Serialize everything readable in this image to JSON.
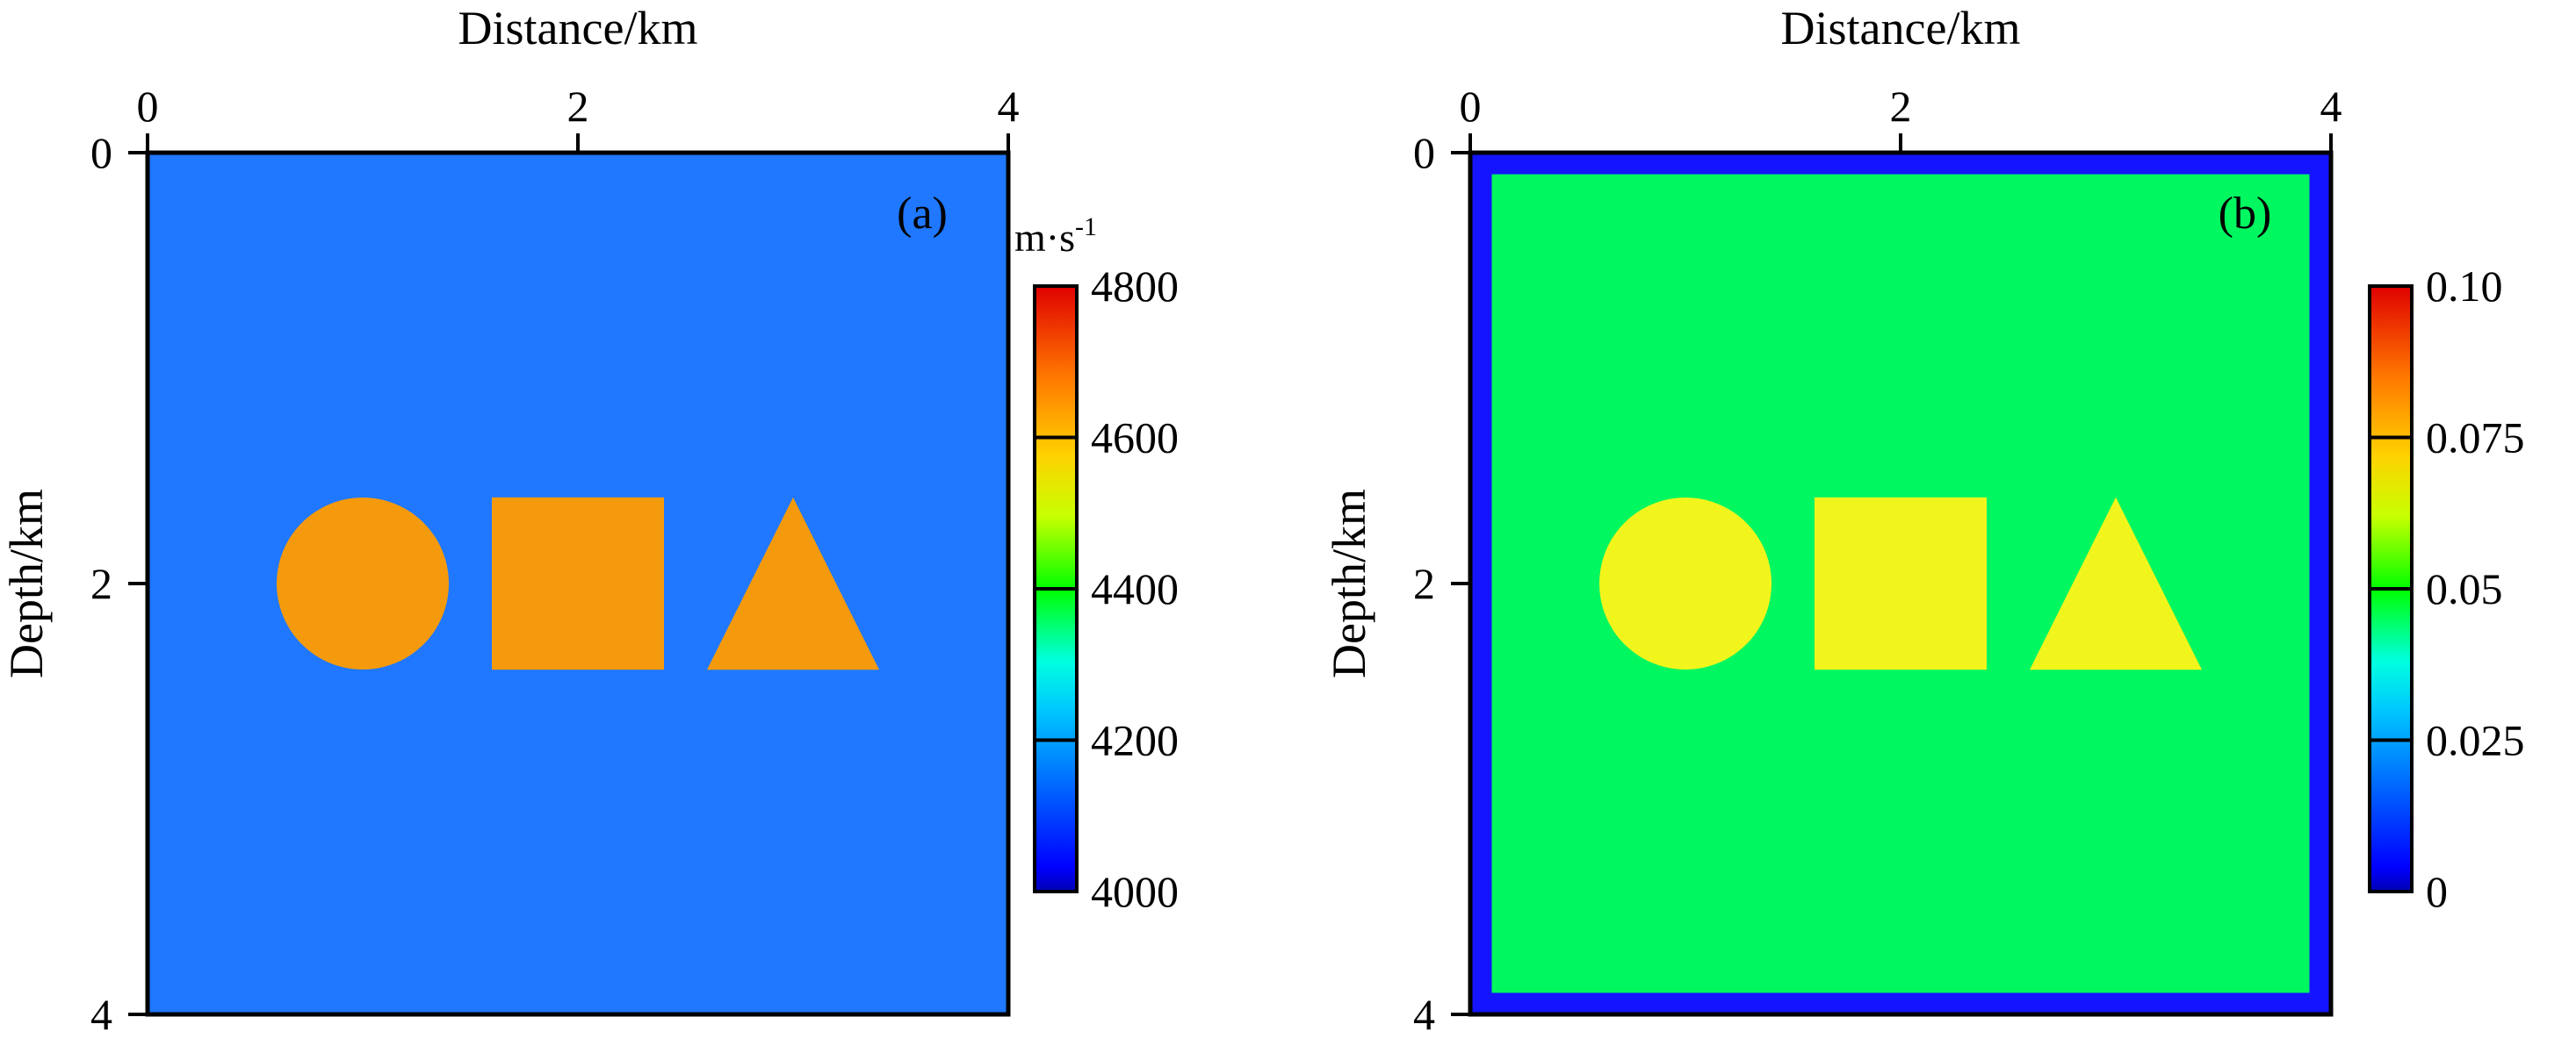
{
  "chart_data": [
    {
      "type": "heatmap",
      "panel_label": "(a)",
      "xlabel": "Distance/km",
      "ylabel": "Depth/km",
      "xlim": [
        0,
        4
      ],
      "ylim": [
        0,
        4
      ],
      "x_ticks": [
        "0",
        "2",
        "4"
      ],
      "y_ticks": [
        "0",
        "2",
        "4"
      ],
      "colorbar": {
        "unit_base": "m·s",
        "unit_exp": "-1",
        "min": 4000,
        "max": 4800,
        "ticks": [
          "4800",
          "4600",
          "4400",
          "4200",
          "4000"
        ]
      },
      "background": {
        "value": 4150,
        "color": "#1f78ff"
      },
      "anomalies": [
        {
          "shape": "circle",
          "center_x": 1.0,
          "center_z": 2.0,
          "radius": 0.4,
          "value": 4650,
          "color": "#f59a0c"
        },
        {
          "shape": "square",
          "x_range": [
            1.6,
            2.4
          ],
          "z_range": [
            1.6,
            2.4
          ],
          "value": 4650,
          "color": "#f59a0c"
        },
        {
          "shape": "triangle",
          "apex": [
            3.0,
            1.6
          ],
          "base_z": 2.4,
          "base_x_range": [
            2.6,
            3.4
          ],
          "value": 4650,
          "color": "#f59a0c"
        }
      ]
    },
    {
      "type": "heatmap",
      "panel_label": "(b)",
      "xlabel": "Distance/km",
      "ylabel": "Depth/km",
      "xlim": [
        0,
        4
      ],
      "ylim": [
        0,
        4
      ],
      "x_ticks": [
        "0",
        "2",
        "4"
      ],
      "y_ticks": [
        "0",
        "2",
        "4"
      ],
      "colorbar": {
        "min": 0,
        "max": 0.1,
        "ticks": [
          "0.10",
          "0.075",
          "0.05",
          "0.025",
          "0"
        ]
      },
      "border": {
        "width_km": 0.1,
        "value": 0,
        "color": "#1414ff"
      },
      "background": {
        "value": 0.05,
        "color": "#00f760"
      },
      "anomalies": [
        {
          "shape": "circle",
          "center_x": 1.0,
          "center_z": 2.0,
          "radius": 0.4,
          "value": 0.075,
          "color": "#f2f51c"
        },
        {
          "shape": "square",
          "x_range": [
            1.6,
            2.4
          ],
          "z_range": [
            1.6,
            2.4
          ],
          "value": 0.075,
          "color": "#f2f51c"
        },
        {
          "shape": "triangle",
          "apex": [
            3.0,
            1.6
          ],
          "base_z": 2.4,
          "base_x_range": [
            2.6,
            3.4
          ],
          "value": 0.075,
          "color": "#f2f51c"
        }
      ]
    }
  ]
}
